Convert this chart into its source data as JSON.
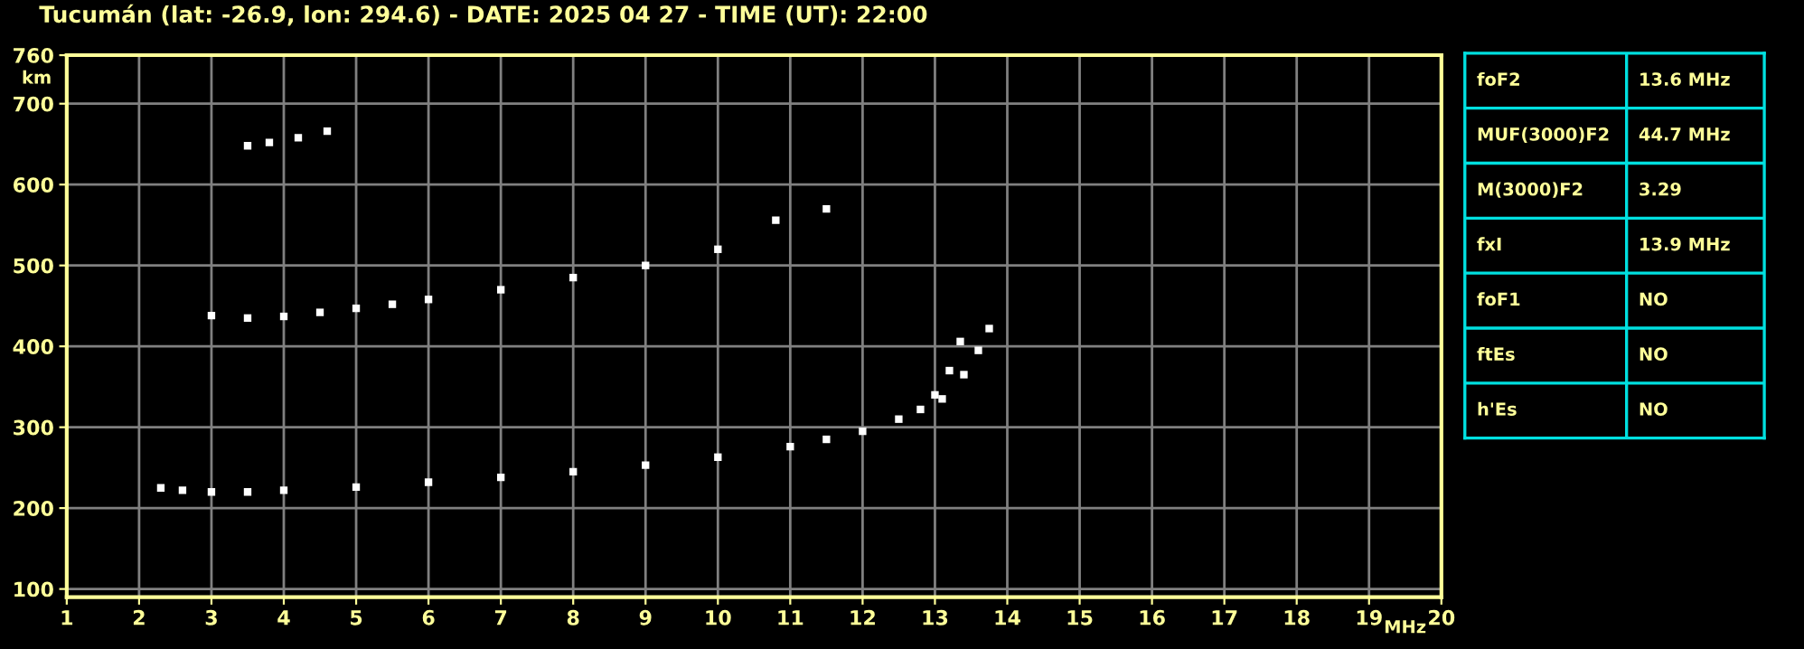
{
  "chart_data": [
    {
      "type": "scatter",
      "title": "Tucumán (lat: -26.9, lon: 294.6) - DATE: 2025 04 27 - TIME (UT): 22:00",
      "xlabel": "MHz",
      "ylabel": "km",
      "xlim": [
        1,
        20
      ],
      "xticks": [
        1,
        2,
        3,
        4,
        5,
        6,
        7,
        8,
        9,
        10,
        11,
        12,
        13,
        14,
        15,
        16,
        17,
        18,
        19,
        20
      ],
      "ylim": [
        90,
        760
      ],
      "yticks": [
        100,
        200,
        300,
        400,
        500,
        600,
        700,
        760
      ],
      "grid": true,
      "marker": "square",
      "series": [
        {
          "color": "#ffffff",
          "x": [
            2.3,
            2.6,
            3,
            3.5,
            4,
            5,
            6,
            7,
            8,
            9,
            10,
            11,
            11.5,
            12,
            12.5,
            12.8,
            13,
            13.2,
            13.35
          ],
          "values": [
            225,
            222,
            220,
            220,
            222,
            226,
            232,
            238,
            245,
            253,
            263,
            276,
            285,
            295,
            310,
            322,
            340,
            370,
            406
          ]
        },
        {
          "color": "#ffffff",
          "x": [
            13.1,
            13.4,
            13.6,
            13.75
          ],
          "values": [
            335,
            365,
            395,
            422
          ]
        },
        {
          "color": "#ffffff",
          "x": [
            3,
            3.5,
            4,
            4.5,
            5,
            5.5,
            6,
            7,
            8,
            9,
            10,
            10.8,
            11.5
          ],
          "values": [
            438,
            435,
            437,
            442,
            447,
            452,
            458,
            470,
            485,
            500,
            520,
            556,
            570
          ]
        },
        {
          "color": "#ffffff",
          "x": [
            3.5,
            3.8,
            4.2,
            4.6
          ],
          "values": [
            648,
            652,
            658,
            666
          ]
        }
      ]
    },
    {
      "type": "other",
      "annotations": [
        "foF2",
        "13.6 MHz",
        "MUF(3000)F2",
        "44.7 MHz",
        "M(3000)F2",
        "3.29",
        "fxI",
        "13.9 MHz",
        "foF1",
        "NO",
        "ftEs",
        "NO",
        "h'Es",
        "NO"
      ]
    }
  ]
}
